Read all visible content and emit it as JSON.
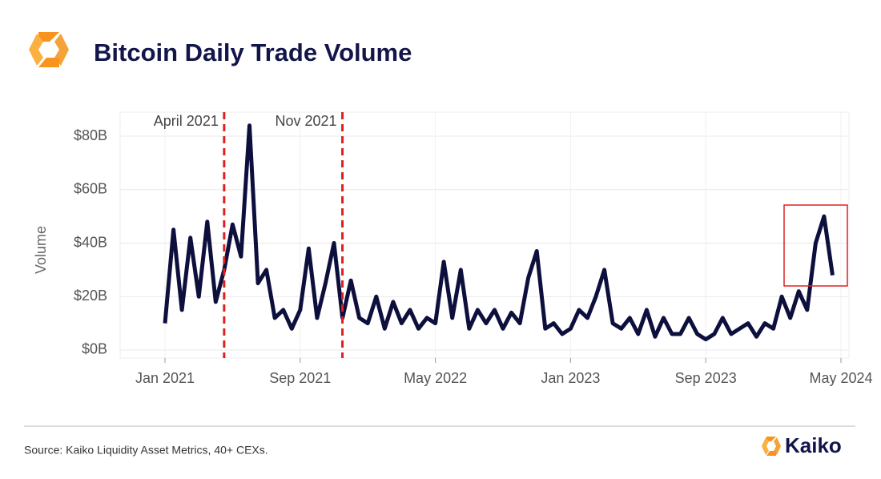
{
  "chart_data": {
    "type": "line",
    "title": "Bitcoin Daily Trade Volume",
    "y_label": "Volume",
    "categories": [
      "Jan 2021",
      null,
      null,
      null,
      null,
      null,
      null,
      null,
      null,
      null,
      null,
      null,
      null,
      null,
      null,
      null,
      "Sep 2021",
      null,
      null,
      null,
      null,
      null,
      null,
      null,
      null,
      null,
      null,
      null,
      null,
      null,
      null,
      null,
      "May 2022",
      null,
      null,
      null,
      null,
      null,
      null,
      null,
      null,
      null,
      null,
      null,
      null,
      null,
      null,
      null,
      "Jan 2023",
      null,
      null,
      null,
      null,
      null,
      null,
      null,
      null,
      null,
      null,
      null,
      null,
      null,
      null,
      null,
      "Sep 2023",
      null,
      null,
      null,
      null,
      null,
      null,
      null,
      null,
      null,
      null,
      null,
      null,
      null,
      null,
      null,
      "May 2024"
    ],
    "series": [
      {
        "name": "Volume",
        "color": "#0d0f3d",
        "values": [
          10,
          45,
          15,
          42,
          20,
          48,
          18,
          30,
          47,
          35,
          84,
          25,
          30,
          12,
          15,
          8,
          15,
          38,
          12,
          25,
          40,
          12,
          26,
          12,
          10,
          20,
          8,
          18,
          10,
          15,
          8,
          12,
          10,
          33,
          12,
          30,
          8,
          15,
          10,
          15,
          8,
          14,
          10,
          27,
          37,
          8,
          10,
          6,
          8,
          15,
          12,
          20,
          30,
          10,
          8,
          12,
          6,
          15,
          5,
          12,
          6,
          6,
          12,
          6,
          4,
          6,
          12,
          6,
          8,
          10,
          5,
          10,
          8,
          20,
          12,
          22,
          15,
          40,
          50,
          28,
          null
        ]
      }
    ],
    "ylim": [
      -3,
      89
    ],
    "yticks": [
      {
        "value": 0,
        "label": "$0B"
      },
      {
        "value": 20,
        "label": "$20B"
      },
      {
        "value": 40,
        "label": "$40B"
      },
      {
        "value": 60,
        "label": "$60B"
      },
      {
        "value": 80,
        "label": "$80B"
      }
    ],
    "grid": true,
    "annotations": [
      {
        "text": "April 2021",
        "x": 7
      },
      {
        "text": "Nov 2021",
        "x": 21
      }
    ]
  },
  "footer": {
    "source": "Source: Kaiko Liquidity Asset Metrics, 40+ CEXs.",
    "brand": "Kaiko"
  }
}
